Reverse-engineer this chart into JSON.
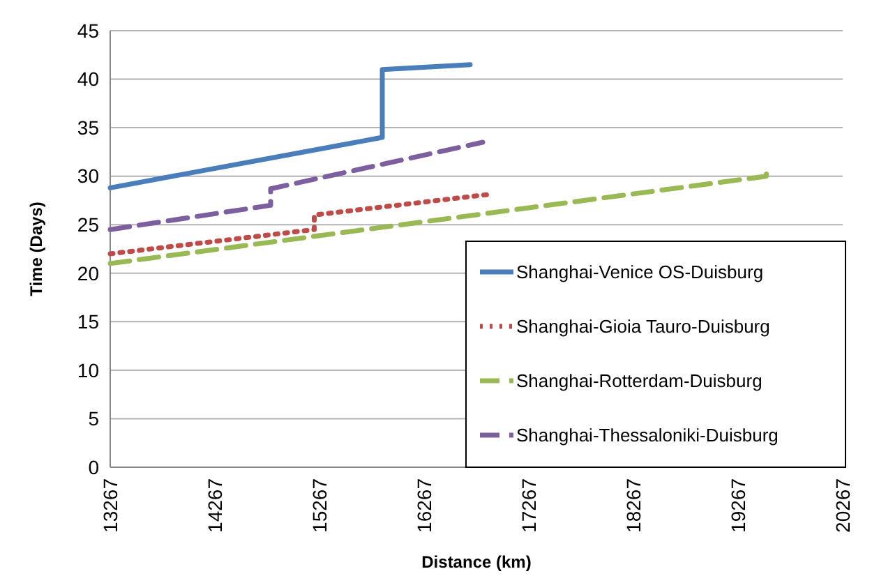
{
  "chart_data": {
    "type": "line",
    "xlabel": "Distance (km)",
    "ylabel": "Time (Days)",
    "xlim": [
      13267,
      20267
    ],
    "xticks": [
      13267,
      14267,
      15267,
      16267,
      17267,
      18267,
      19267,
      20267
    ],
    "ylim": [
      0,
      45
    ],
    "yticks": [
      0,
      5,
      10,
      15,
      20,
      25,
      30,
      35,
      40,
      45
    ],
    "grid": "y",
    "legend": "bottom right",
    "series": [
      {
        "name": "Shanghai-Venice OS-Duisburg",
        "color": "#4a7ebb",
        "line_style": "solid",
        "x": [
          13267,
          15867,
          15867,
          16707
        ],
        "values": [
          28.8,
          34,
          41,
          41.5
        ]
      },
      {
        "name": "Shanghai-Gioia Tauro-Duisburg",
        "color": "#be4b48",
        "line_style": "dotted",
        "x": [
          13267,
          15217,
          15217,
          16867
        ],
        "values": [
          22,
          24.5,
          26,
          28.1
        ]
      },
      {
        "name": "Shanghai-Rotterdam-Duisburg",
        "color": "#98b954",
        "line_style": "dashed",
        "x": [
          13267,
          19537,
          19537
        ],
        "values": [
          21,
          30,
          30.7
        ]
      },
      {
        "name": "Shanghai-Thessaloniki-Duisburg",
        "color": "#7d5fa0",
        "line_style": "dashed",
        "x": [
          13267,
          14800,
          14800,
          16827
        ],
        "values": [
          24.5,
          27,
          28.7,
          33.5
        ]
      }
    ]
  }
}
